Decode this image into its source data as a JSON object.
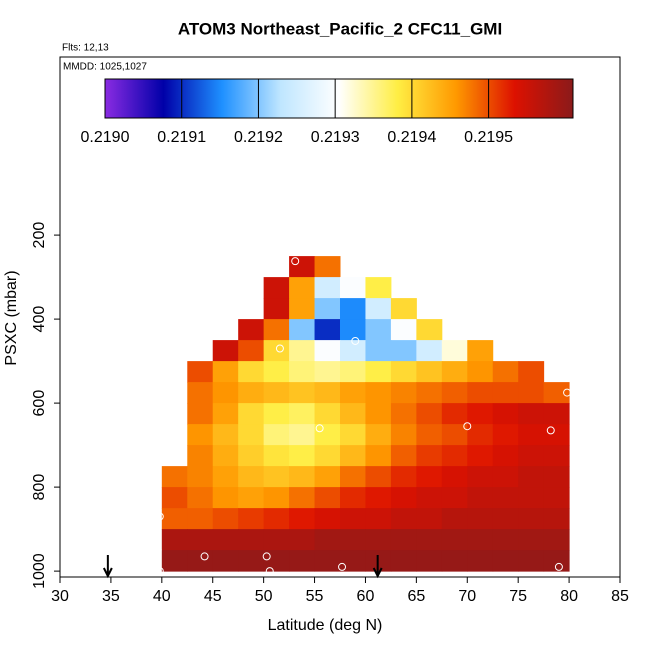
{
  "chart_data": {
    "type": "heatmap",
    "title": "ATOM3 Northeast_Pacific_2 CFC11_GMI",
    "annotations": [
      "Flts: 12,13",
      "MMDD: 1025,1027"
    ],
    "xlabel": "Latitude (deg N)",
    "ylabel": "PSXC (mbar)",
    "xlim": [
      30,
      85
    ],
    "xticks": [
      30,
      35,
      40,
      45,
      50,
      55,
      60,
      65,
      70,
      75,
      80,
      85
    ],
    "ylim": [
      1014,
      -224
    ],
    "yticks": [
      200,
      400,
      600,
      800,
      1000
    ],
    "x_edges": [
      40,
      42.5,
      45,
      47.5,
      50,
      52.5,
      55,
      57.5,
      60,
      62.5,
      65,
      67.5,
      70,
      72.5,
      75,
      77.5,
      80
    ],
    "y_edges": [
      250,
      300,
      350,
      400,
      450,
      500,
      550,
      600,
      650,
      700,
      750,
      800,
      850,
      900,
      950,
      1000
    ],
    "z": [
      [
        null,
        null,
        null,
        null,
        null,
        0.21955,
        0.21948,
        null,
        null,
        null,
        null,
        null,
        null,
        null,
        null,
        null
      ],
      [
        null,
        null,
        null,
        null,
        0.21955,
        0.21945,
        0.21925,
        0.2193,
        0.21938,
        null,
        null,
        null,
        null,
        null,
        null,
        null
      ],
      [
        null,
        null,
        null,
        null,
        0.21955,
        0.21945,
        0.2192,
        0.21915,
        0.21925,
        0.2194,
        null,
        null,
        null,
        null,
        null,
        null
      ],
      [
        null,
        null,
        null,
        0.21955,
        0.21948,
        0.2192,
        0.2191,
        0.21915,
        0.2192,
        0.2193,
        0.2194,
        null,
        null,
        null,
        null,
        null
      ],
      [
        null,
        null,
        0.21955,
        0.2195,
        0.2194,
        0.21935,
        0.2193,
        0.21925,
        0.2192,
        0.2192,
        0.21925,
        0.21932,
        0.21945,
        null,
        null,
        null
      ],
      [
        null,
        0.2195,
        0.21945,
        0.2194,
        0.21938,
        0.21936,
        0.21935,
        0.21936,
        0.21938,
        0.2194,
        0.21942,
        0.21944,
        0.21946,
        0.21948,
        0.2195,
        null
      ],
      [
        null,
        0.21948,
        0.21946,
        0.21944,
        0.21943,
        0.21942,
        0.21943,
        0.21945,
        0.21946,
        0.21947,
        0.21948,
        0.21949,
        0.2195,
        0.2195,
        0.2195,
        0.21949
      ],
      [
        null,
        0.21948,
        0.21945,
        0.2194,
        0.21938,
        0.21937,
        0.2194,
        0.21943,
        0.21946,
        0.21948,
        0.2195,
        0.21952,
        0.21953,
        0.21954,
        0.21955,
        0.21955
      ],
      [
        null,
        0.21946,
        0.21943,
        0.2194,
        0.21936,
        0.21935,
        0.21938,
        0.2194,
        0.21944,
        0.21947,
        0.21949,
        0.2195,
        0.21952,
        0.21953,
        0.21954,
        0.21954
      ],
      [
        null,
        0.21947,
        0.21944,
        0.21941,
        0.21939,
        0.21938,
        0.2194,
        0.21943,
        0.21946,
        0.21949,
        0.21951,
        0.21952,
        0.21953,
        0.21954,
        0.21955,
        0.21955
      ],
      [
        0.21948,
        0.21947,
        0.21945,
        0.21943,
        0.21942,
        0.21943,
        0.21945,
        0.21948,
        0.2195,
        0.21952,
        0.21953,
        0.21954,
        0.21955,
        0.21955,
        0.21956,
        0.21956
      ],
      [
        0.2195,
        0.21948,
        0.21946,
        0.21945,
        0.21946,
        0.21948,
        0.2195,
        0.21952,
        0.21953,
        0.21954,
        0.21955,
        0.21955,
        0.21956,
        0.21956,
        0.21956,
        0.21956
      ],
      [
        0.21949,
        0.21949,
        0.2195,
        0.21951,
        0.21952,
        0.21953,
        0.21954,
        0.21955,
        0.21955,
        0.21956,
        0.21956,
        0.21957,
        0.21957,
        0.21957,
        0.21957,
        0.21957
      ],
      [
        0.21958,
        0.21958,
        0.21958,
        0.21958,
        0.21958,
        0.21958,
        0.21959,
        0.21959,
        0.21959,
        0.21959,
        0.21959,
        0.21959,
        0.21959,
        0.21959,
        0.21959,
        0.21959
      ],
      [
        0.2196,
        0.2196,
        0.2196,
        0.2196,
        0.2196,
        0.2196,
        0.2196,
        0.2196,
        0.2196,
        0.2196,
        0.2196,
        0.2196,
        0.2196,
        0.2196,
        0.2196,
        0.2196
      ]
    ],
    "colorbar_lim": [
      0.219,
      0.21961
    ],
    "colorbar_ticks": [
      {
        "value": 0.219,
        "label": "0.2190"
      },
      {
        "value": 0.2191,
        "label": "0.2191"
      },
      {
        "value": 0.2192,
        "label": "0.2192"
      },
      {
        "value": 0.2193,
        "label": "0.2193"
      },
      {
        "value": 0.2194,
        "label": "0.2194"
      },
      {
        "value": 0.2195,
        "label": "0.2195"
      }
    ],
    "colormap": [
      "#8a2be2",
      "#0000a8",
      "#1e90ff",
      "#bfe6ff",
      "#ffffff",
      "#ffee44",
      "#ff9900",
      "#dd1100",
      "#8b1a1a"
    ],
    "points": {
      "x": [
        39.8,
        39.6,
        39.8,
        44.2,
        50.3,
        50.6,
        57.7,
        53.1,
        51.6,
        59.0,
        70.0,
        78.2,
        79.0,
        55.5,
        79.8
      ],
      "y": [
        870,
        950,
        1000,
        965,
        965,
        1000,
        990,
        262,
        470,
        452,
        655,
        665,
        990,
        660,
        575
      ]
    },
    "arrows_x": [
      34.7,
      61.2
    ]
  }
}
